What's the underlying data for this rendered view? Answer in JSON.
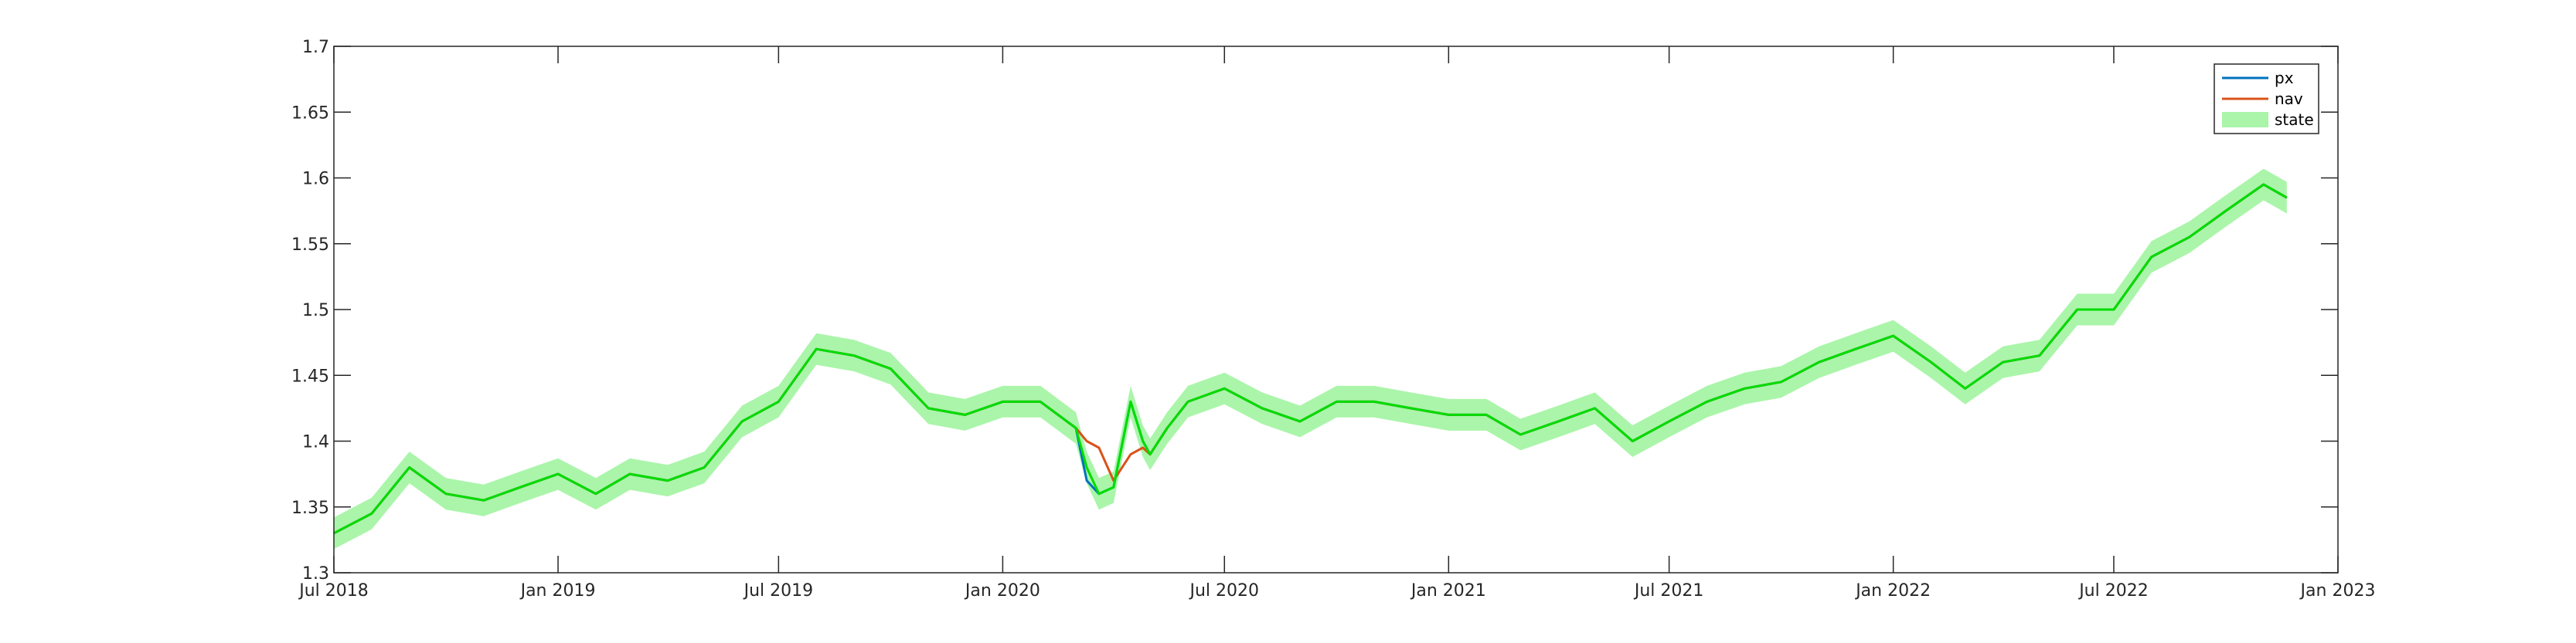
{
  "chart_data": {
    "type": "line",
    "title": "",
    "xlabel": "",
    "ylabel": "",
    "xlim": [
      "2018-07-01",
      "2023-01-01"
    ],
    "ylim": [
      1.3,
      1.7
    ],
    "x_ticks": [
      "2018-07-01",
      "2019-01-01",
      "2019-07-01",
      "2020-01-01",
      "2020-07-01",
      "2021-01-01",
      "2021-07-01",
      "2022-01-01",
      "2022-07-01",
      "2023-01-01"
    ],
    "x_tick_labels": [
      "Jul 2018",
      "Jan 2019",
      "Jul 2019",
      "Jan 2020",
      "Jul 2020",
      "Jan 2021",
      "Jul 2021",
      "Jan 2022",
      "Jul 2022",
      "Jan 2023"
    ],
    "y_ticks": [
      1.3,
      1.35,
      1.4,
      1.45,
      1.5,
      1.55,
      1.6,
      1.65,
      1.7
    ],
    "y_tick_labels": [
      "1.3",
      "1.35",
      "1.4",
      "1.45",
      "1.5",
      "1.55",
      "1.6",
      "1.65",
      "1.7"
    ],
    "grid": false,
    "legend_position": "top-right",
    "band_halfwidth": 0.012,
    "series": [
      {
        "name": "px",
        "kind": "line",
        "color": "#0072BD",
        "x": [
          "2018-07-01",
          "2018-08-01",
          "2018-09-01",
          "2018-10-01",
          "2018-11-01",
          "2018-12-01",
          "2019-01-01",
          "2019-02-01",
          "2019-03-01",
          "2019-04-01",
          "2019-05-01",
          "2019-06-01",
          "2019-07-01",
          "2019-08-01",
          "2019-09-01",
          "2019-10-01",
          "2019-11-01",
          "2019-12-01",
          "2020-01-01",
          "2020-02-01",
          "2020-03-01",
          "2020-03-10",
          "2020-03-20",
          "2020-04-01",
          "2020-04-15",
          "2020-04-25",
          "2020-05-01",
          "2020-05-15",
          "2020-06-01",
          "2020-07-01",
          "2020-08-01",
          "2020-09-01",
          "2020-10-01",
          "2020-11-01",
          "2020-12-01",
          "2021-01-01",
          "2021-02-01",
          "2021-03-01",
          "2021-04-01",
          "2021-05-01",
          "2021-06-01",
          "2021-07-01",
          "2021-08-01",
          "2021-09-01",
          "2021-10-01",
          "2021-11-01",
          "2021-12-01",
          "2022-01-01",
          "2022-02-01",
          "2022-03-01",
          "2022-04-01",
          "2022-05-01",
          "2022-06-01",
          "2022-07-01",
          "2022-08-01",
          "2022-09-01",
          "2022-10-01",
          "2022-11-01",
          "2022-11-20"
        ],
        "y": [
          1.33,
          1.345,
          1.38,
          1.36,
          1.355,
          1.365,
          1.375,
          1.36,
          1.375,
          1.37,
          1.38,
          1.415,
          1.43,
          1.47,
          1.465,
          1.455,
          1.425,
          1.42,
          1.43,
          1.43,
          1.41,
          1.37,
          1.36,
          1.365,
          1.43,
          1.4,
          1.39,
          1.41,
          1.43,
          1.44,
          1.425,
          1.415,
          1.43,
          1.43,
          1.425,
          1.42,
          1.42,
          1.405,
          1.415,
          1.425,
          1.4,
          1.415,
          1.43,
          1.44,
          1.445,
          1.46,
          1.47,
          1.48,
          1.46,
          1.44,
          1.46,
          1.465,
          1.5,
          1.5,
          1.54,
          1.555,
          1.575,
          1.595,
          1.585
        ]
      },
      {
        "name": "nav",
        "kind": "line",
        "color": "#D95319",
        "x": [
          "2018-07-01",
          "2018-08-01",
          "2018-09-01",
          "2018-10-01",
          "2018-11-01",
          "2018-12-01",
          "2019-01-01",
          "2019-02-01",
          "2019-03-01",
          "2019-04-01",
          "2019-05-01",
          "2019-06-01",
          "2019-07-01",
          "2019-08-01",
          "2019-09-01",
          "2019-10-01",
          "2019-11-01",
          "2019-12-01",
          "2020-01-01",
          "2020-02-01",
          "2020-03-01",
          "2020-03-10",
          "2020-03-20",
          "2020-04-01",
          "2020-04-15",
          "2020-04-25",
          "2020-05-01",
          "2020-05-15",
          "2020-06-01",
          "2020-07-01",
          "2020-08-01",
          "2020-09-01",
          "2020-10-01",
          "2020-11-01",
          "2020-12-01",
          "2021-01-01",
          "2021-02-01",
          "2021-03-01",
          "2021-04-01",
          "2021-05-01",
          "2021-06-01",
          "2021-07-01",
          "2021-08-01",
          "2021-09-01",
          "2021-10-01",
          "2021-11-01",
          "2021-12-01",
          "2022-01-01",
          "2022-02-01",
          "2022-03-01",
          "2022-04-01",
          "2022-05-01",
          "2022-06-01",
          "2022-07-01",
          "2022-08-01",
          "2022-09-01",
          "2022-10-01",
          "2022-11-01",
          "2022-11-20"
        ],
        "y": [
          1.33,
          1.345,
          1.38,
          1.36,
          1.355,
          1.365,
          1.375,
          1.36,
          1.375,
          1.37,
          1.38,
          1.415,
          1.43,
          1.47,
          1.465,
          1.455,
          1.425,
          1.42,
          1.43,
          1.43,
          1.41,
          1.4,
          1.395,
          1.37,
          1.39,
          1.395,
          1.39,
          1.41,
          1.43,
          1.44,
          1.425,
          1.415,
          1.43,
          1.43,
          1.425,
          1.42,
          1.42,
          1.405,
          1.415,
          1.425,
          1.4,
          1.415,
          1.43,
          1.44,
          1.445,
          1.46,
          1.47,
          1.48,
          1.46,
          1.44,
          1.46,
          1.465,
          1.5,
          1.5,
          1.54,
          1.555,
          1.575,
          1.595,
          1.585
        ]
      },
      {
        "name": "state",
        "kind": "band",
        "color": "#00DD00",
        "fill": "#AAF5AA",
        "x": [
          "2018-07-01",
          "2018-08-01",
          "2018-09-01",
          "2018-10-01",
          "2018-11-01",
          "2018-12-01",
          "2019-01-01",
          "2019-02-01",
          "2019-03-01",
          "2019-04-01",
          "2019-05-01",
          "2019-06-01",
          "2019-07-01",
          "2019-08-01",
          "2019-09-01",
          "2019-10-01",
          "2019-11-01",
          "2019-12-01",
          "2020-01-01",
          "2020-02-01",
          "2020-03-01",
          "2020-03-10",
          "2020-03-20",
          "2020-04-01",
          "2020-04-15",
          "2020-04-25",
          "2020-05-01",
          "2020-05-15",
          "2020-06-01",
          "2020-07-01",
          "2020-08-01",
          "2020-09-01",
          "2020-10-01",
          "2020-11-01",
          "2020-12-01",
          "2021-01-01",
          "2021-02-01",
          "2021-03-01",
          "2021-04-01",
          "2021-05-01",
          "2021-06-01",
          "2021-07-01",
          "2021-08-01",
          "2021-09-01",
          "2021-10-01",
          "2021-11-01",
          "2021-12-01",
          "2022-01-01",
          "2022-02-01",
          "2022-03-01",
          "2022-04-01",
          "2022-05-01",
          "2022-06-01",
          "2022-07-01",
          "2022-08-01",
          "2022-09-01",
          "2022-10-01",
          "2022-11-01",
          "2022-11-20"
        ],
        "y": [
          1.33,
          1.345,
          1.38,
          1.36,
          1.355,
          1.365,
          1.375,
          1.36,
          1.375,
          1.37,
          1.38,
          1.415,
          1.43,
          1.47,
          1.465,
          1.455,
          1.425,
          1.42,
          1.43,
          1.43,
          1.41,
          1.38,
          1.36,
          1.365,
          1.43,
          1.4,
          1.39,
          1.41,
          1.43,
          1.44,
          1.425,
          1.415,
          1.43,
          1.43,
          1.425,
          1.42,
          1.42,
          1.405,
          1.415,
          1.425,
          1.4,
          1.415,
          1.43,
          1.44,
          1.445,
          1.46,
          1.47,
          1.48,
          1.46,
          1.44,
          1.46,
          1.465,
          1.5,
          1.5,
          1.54,
          1.555,
          1.575,
          1.595,
          1.585
        ]
      }
    ]
  }
}
